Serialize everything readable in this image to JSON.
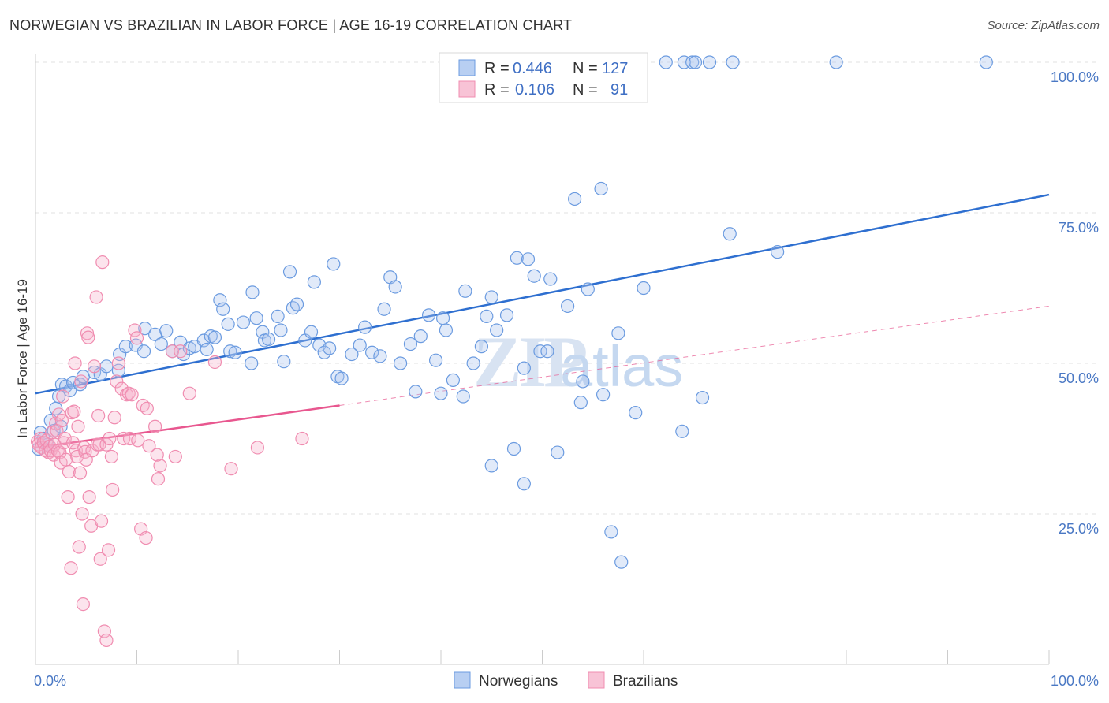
{
  "chart_data": {
    "type": "scatter",
    "title": "NORWEGIAN VS BRAZILIAN IN LABOR FORCE | AGE 16-19 CORRELATION CHART",
    "source": "Source: ZipAtlas.com",
    "xlabel": "",
    "ylabel": "In Labor Force | Age 16-19",
    "xlim": [
      0,
      100
    ],
    "ylim": [
      0,
      100
    ],
    "x_tick_labels": [
      "0.0%",
      "100.0%"
    ],
    "y_ticks": [
      {
        "value": 25,
        "label": "25.0%"
      },
      {
        "value": 50,
        "label": "50.0%"
      },
      {
        "value": 75,
        "label": "75.0%"
      },
      {
        "value": 100,
        "label": "100.0%"
      }
    ],
    "grid": true,
    "legend_position": "top-center",
    "stats_legend": [
      {
        "r_label": "R =",
        "r_value": "0.446",
        "n_label": "N =",
        "n_value": "127"
      },
      {
        "r_label": "R =",
        "r_value": "0.106",
        "n_label": "N =",
        "n_value": "91"
      }
    ],
    "watermark": "ZIPatlas",
    "series": [
      {
        "name": "Norwegians",
        "color": "#6b9be0",
        "line_color": "#2e6fd0",
        "trend": {
          "x0": 0,
          "y0": 45,
          "x1": 100,
          "y1": 78,
          "dashed_from": null
        },
        "points": [
          [
            0.3,
            35.8
          ],
          [
            0.5,
            38.5
          ],
          [
            0.8,
            37.5
          ],
          [
            1.2,
            36.5
          ],
          [
            1.5,
            40.5
          ],
          [
            1.8,
            38.8
          ],
          [
            2,
            42.5
          ],
          [
            2.3,
            44.5
          ],
          [
            2.5,
            39.5
          ],
          [
            2.6,
            46.5
          ],
          [
            3,
            46.2
          ],
          [
            3.4,
            45.5
          ],
          [
            3.7,
            46.8
          ],
          [
            4.4,
            46.5
          ],
          [
            4.7,
            47.8
          ],
          [
            5.8,
            48.5
          ],
          [
            6.4,
            48.2
          ],
          [
            7,
            49.5
          ],
          [
            8.2,
            48.8
          ],
          [
            8.3,
            51.5
          ],
          [
            8.9,
            52.8
          ],
          [
            9.9,
            53
          ],
          [
            10.8,
            55.8
          ],
          [
            10.7,
            52
          ],
          [
            11.8,
            54.8
          ],
          [
            12.4,
            53.2
          ],
          [
            12.9,
            55.4
          ],
          [
            13.5,
            52
          ],
          [
            14.3,
            53.5
          ],
          [
            14.6,
            51.5
          ],
          [
            15.2,
            52.5
          ],
          [
            15.7,
            52.8
          ],
          [
            16.6,
            53.8
          ],
          [
            16.9,
            52.3
          ],
          [
            17.3,
            54.5
          ],
          [
            17.7,
            54.3
          ],
          [
            18.2,
            60.5
          ],
          [
            18.5,
            59
          ],
          [
            19,
            56.5
          ],
          [
            19.2,
            52
          ],
          [
            19.7,
            51.8
          ],
          [
            20.5,
            56.8
          ],
          [
            21.3,
            50
          ],
          [
            21.4,
            61.8
          ],
          [
            21.8,
            57.5
          ],
          [
            22.4,
            55.2
          ],
          [
            22.6,
            53.8
          ],
          [
            23,
            54
          ],
          [
            23.9,
            57.8
          ],
          [
            24.2,
            55.5
          ],
          [
            24.5,
            50.3
          ],
          [
            25.1,
            65.2
          ],
          [
            25.4,
            59.2
          ],
          [
            25.8,
            59.8
          ],
          [
            26.6,
            53.8
          ],
          [
            27.2,
            55.2
          ],
          [
            27.5,
            63.5
          ],
          [
            28,
            53
          ],
          [
            28.5,
            51.8
          ],
          [
            29,
            52.5
          ],
          [
            29.4,
            66.5
          ],
          [
            29.8,
            47.8
          ],
          [
            30.2,
            47.5
          ],
          [
            31.2,
            51.5
          ],
          [
            32,
            53
          ],
          [
            32.5,
            56
          ],
          [
            33.2,
            51.8
          ],
          [
            34,
            51.2
          ],
          [
            34.4,
            59
          ],
          [
            35,
            64.3
          ],
          [
            35.5,
            62.7
          ],
          [
            36,
            50
          ],
          [
            37,
            53.2
          ],
          [
            37.5,
            45.3
          ],
          [
            38,
            54.5
          ],
          [
            38.8,
            58
          ],
          [
            39.5,
            50.5
          ],
          [
            40,
            45
          ],
          [
            40.2,
            57.5
          ],
          [
            40.5,
            55.5
          ],
          [
            41.2,
            47.2
          ],
          [
            42.2,
            44.5
          ],
          [
            42.4,
            62
          ],
          [
            43.2,
            50
          ],
          [
            44,
            52.8
          ],
          [
            45,
            61
          ],
          [
            44.5,
            57.8
          ],
          [
            45.5,
            55.5
          ],
          [
            45,
            33
          ],
          [
            46.5,
            58
          ],
          [
            47.5,
            67.5
          ],
          [
            48.2,
            49.2
          ],
          [
            48.6,
            67.3
          ],
          [
            48.2,
            30
          ],
          [
            47.2,
            35.8
          ],
          [
            49.2,
            64.5
          ],
          [
            49.8,
            52
          ],
          [
            50.5,
            52
          ],
          [
            50.8,
            64
          ],
          [
            51.5,
            35.2
          ],
          [
            52.5,
            59.5
          ],
          [
            53.2,
            77.3
          ],
          [
            53.8,
            43.5
          ],
          [
            54,
            47
          ],
          [
            54.5,
            62.3
          ],
          [
            55.8,
            79
          ],
          [
            56,
            44.8
          ],
          [
            56.8,
            22
          ],
          [
            57.5,
            55
          ],
          [
            57.8,
            17
          ],
          [
            59.2,
            41.8
          ],
          [
            60,
            62.5
          ],
          [
            62.2,
            100
          ],
          [
            64,
            100
          ],
          [
            64.8,
            100
          ],
          [
            65.1,
            100
          ],
          [
            66.5,
            100
          ],
          [
            68.5,
            71.5
          ],
          [
            68.8,
            100
          ],
          [
            73.2,
            68.5
          ],
          [
            79,
            100
          ],
          [
            63.8,
            38.7
          ],
          [
            65.8,
            44.3
          ],
          [
            93.8,
            100
          ]
        ]
      },
      {
        "name": "Brazilians",
        "color": "#f08cb0",
        "line_color": "#e8578f",
        "trend": {
          "x0": 0,
          "y0": 36,
          "x1": 30,
          "y1": 43,
          "dashed_to": [
            100,
            59.5
          ]
        },
        "points": [
          [
            0.2,
            37
          ],
          [
            0.3,
            36.5
          ],
          [
            0.5,
            37.5
          ],
          [
            0.6,
            36
          ],
          [
            0.8,
            36.8
          ],
          [
            1,
            35.5
          ],
          [
            1.1,
            37.2
          ],
          [
            1.3,
            35.2
          ],
          [
            1.4,
            36.2
          ],
          [
            1.5,
            35.5
          ],
          [
            1.6,
            38.5
          ],
          [
            1.8,
            34.8
          ],
          [
            1.9,
            36.5
          ],
          [
            2,
            40
          ],
          [
            2.1,
            38.8
          ],
          [
            2.2,
            35.5
          ],
          [
            2.3,
            41.5
          ],
          [
            2.4,
            35.2
          ],
          [
            2.5,
            33.5
          ],
          [
            2.6,
            40.5
          ],
          [
            2.7,
            44.5
          ],
          [
            2.8,
            36.8
          ],
          [
            2.9,
            37.5
          ],
          [
            3,
            34
          ],
          [
            3.2,
            27.8
          ],
          [
            3.3,
            32
          ],
          [
            3.5,
            16
          ],
          [
            3.6,
            41.8
          ],
          [
            3.8,
            42
          ],
          [
            3.9,
            50
          ],
          [
            4,
            35.5
          ],
          [
            4.1,
            34.5
          ],
          [
            4.2,
            39.5
          ],
          [
            4.3,
            19.5
          ],
          [
            4.4,
            31.8
          ],
          [
            4.5,
            47
          ],
          [
            4.6,
            25
          ],
          [
            4.7,
            10
          ],
          [
            4.8,
            36
          ],
          [
            4.9,
            35.3
          ],
          [
            5,
            34
          ],
          [
            5.1,
            55
          ],
          [
            5.2,
            54.3
          ],
          [
            5.3,
            27.8
          ],
          [
            5.5,
            23
          ],
          [
            5.6,
            35.5
          ],
          [
            5.8,
            49.5
          ],
          [
            6,
            61
          ],
          [
            6.1,
            36.5
          ],
          [
            6.2,
            41.3
          ],
          [
            6.3,
            36.5
          ],
          [
            6.4,
            17.5
          ],
          [
            6.5,
            23.8
          ],
          [
            6.6,
            66.8
          ],
          [
            6.8,
            5.5
          ],
          [
            7,
            4
          ],
          [
            7,
            36.5
          ],
          [
            7.2,
            19
          ],
          [
            7.3,
            37.5
          ],
          [
            7.5,
            34.5
          ],
          [
            7.6,
            29
          ],
          [
            7.8,
            41
          ],
          [
            8,
            47
          ],
          [
            8.2,
            50
          ],
          [
            8.5,
            45.8
          ],
          [
            8.7,
            37.5
          ],
          [
            9,
            44.8
          ],
          [
            9.2,
            45
          ],
          [
            9.3,
            37.5
          ],
          [
            9.5,
            44.8
          ],
          [
            9.8,
            55.5
          ],
          [
            10,
            54.2
          ],
          [
            10.1,
            37.2
          ],
          [
            10.4,
            22.5
          ],
          [
            10.6,
            43
          ],
          [
            10.9,
            21
          ],
          [
            11,
            42.5
          ],
          [
            11.8,
            39.5
          ],
          [
            12.1,
            30.8
          ],
          [
            12.3,
            33
          ],
          [
            13.5,
            52
          ],
          [
            14.3,
            52
          ],
          [
            15.2,
            45
          ],
          [
            17.7,
            50.2
          ],
          [
            19.3,
            32.5
          ],
          [
            21.9,
            36
          ],
          [
            26.3,
            37.5
          ],
          [
            13.8,
            34.5
          ],
          [
            12,
            34.8
          ],
          [
            11.2,
            36.3
          ],
          [
            3.7,
            36.8
          ]
        ]
      }
    ]
  }
}
